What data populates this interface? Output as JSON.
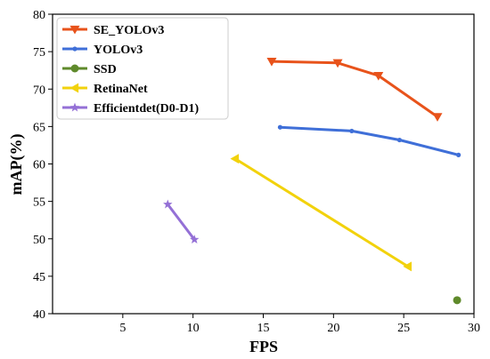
{
  "chart_data": {
    "type": "line",
    "xlabel": "FPS",
    "ylabel": "mAP(%)",
    "xlim": [
      0,
      30
    ],
    "ylim": [
      40,
      80
    ],
    "xticks": [
      5,
      10,
      15,
      20,
      25,
      30
    ],
    "yticks": [
      40,
      45,
      50,
      55,
      60,
      65,
      70,
      75,
      80
    ],
    "grid": false,
    "legend_position": "top-left",
    "series": [
      {
        "name": "SE_YOLOv3",
        "color": "#e8531b",
        "marker": "triangle-down",
        "x": [
          15.6,
          20.3,
          23.2,
          27.4
        ],
        "y": [
          73.7,
          73.5,
          71.8,
          66.3
        ]
      },
      {
        "name": "YOLOv3",
        "color": "#3f6fd8",
        "marker": "circle",
        "x": [
          16.2,
          21.3,
          24.7,
          28.9
        ],
        "y": [
          64.9,
          64.4,
          63.2,
          61.2
        ]
      },
      {
        "name": "SSD",
        "color": "#5f8a2b",
        "marker": "circle-large",
        "x": [
          28.8
        ],
        "y": [
          41.8
        ]
      },
      {
        "name": "RetinaNet",
        "color": "#f2d20c",
        "marker": "triangle-left",
        "x": [
          13.0,
          25.3
        ],
        "y": [
          60.7,
          46.3
        ]
      },
      {
        "name": "Efficientdet(D0-D1)",
        "color": "#9470d6",
        "marker": "star",
        "x": [
          8.2,
          10.1
        ],
        "y": [
          54.6,
          49.9
        ]
      }
    ]
  }
}
